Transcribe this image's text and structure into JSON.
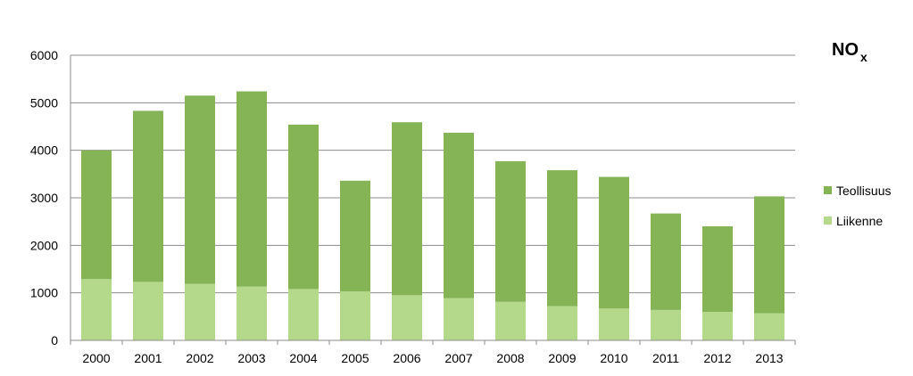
{
  "chart_data": {
    "type": "bar",
    "stacked": true,
    "title_main": "NO",
    "title_sub": "x",
    "categories": [
      "2000",
      "2001",
      "2002",
      "2003",
      "2004",
      "2005",
      "2006",
      "2007",
      "2008",
      "2009",
      "2010",
      "2011",
      "2012",
      "2013"
    ],
    "series": [
      {
        "name": "Liikenne",
        "color": "#b4d98b",
        "values": [
          1290,
          1230,
          1190,
          1130,
          1080,
          1030,
          950,
          890,
          810,
          720,
          670,
          640,
          600,
          570
        ]
      },
      {
        "name": "Teollisuus",
        "color": "#84b456",
        "values": [
          2710,
          3600,
          3960,
          4110,
          3460,
          2330,
          3640,
          3480,
          2960,
          2860,
          2770,
          2030,
          1800,
          2460
        ]
      }
    ],
    "ylim": [
      0,
      6000
    ],
    "yticks": [
      0,
      1000,
      2000,
      3000,
      4000,
      5000,
      6000
    ],
    "xlabel": "",
    "ylabel": "",
    "grid": true,
    "legend_position": "right",
    "legend_order": [
      "Teollisuus",
      "Liikenne"
    ]
  }
}
